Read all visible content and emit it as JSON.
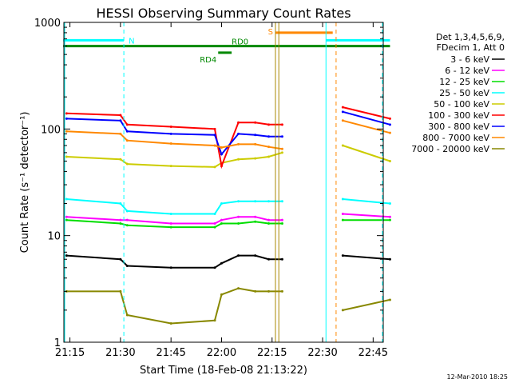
{
  "chart_data": {
    "type": "line",
    "title": "HESSI Observing Summary Count Rates",
    "xlabel": "Start Time (18-Feb-08 21:13:22)",
    "ylabel": "Count Rate (s⁻¹ detector⁻¹)",
    "ylog": true,
    "ylim": [
      1,
      1000
    ],
    "xlim_minutes": [
      21.22,
      22.8
    ],
    "x_ticks": [
      "21:15",
      "21:30",
      "21:45",
      "22:00",
      "22:15",
      "22:30",
      "22:45"
    ],
    "y_ticks": [
      "1",
      "10",
      "100",
      "1000"
    ],
    "grid": false,
    "legend_position": "right",
    "legend_header": [
      "Det 1,3,4,5,6,9,",
      "FDecim 1, Att 0"
    ],
    "series": [
      {
        "name": "3 - 6 keV",
        "color": "#000000",
        "x": [
          "21:14",
          "21:30",
          "21:32",
          "21:45",
          "21:58",
          "22:00",
          "22:05",
          "22:10",
          "22:14",
          "22:18",
          "22:36",
          "22:50"
        ],
        "values": [
          6.5,
          6.0,
          5.2,
          5.0,
          5.0,
          5.5,
          6.5,
          6.5,
          6.0,
          6.0,
          6.5,
          6.0
        ]
      },
      {
        "name": "6 - 12 keV",
        "color": "#ff00ff",
        "x": [
          "21:14",
          "21:30",
          "21:32",
          "21:45",
          "21:58",
          "22:00",
          "22:05",
          "22:10",
          "22:14",
          "22:18",
          "22:36",
          "22:50"
        ],
        "values": [
          15,
          14,
          14,
          13,
          13,
          14,
          15,
          15,
          14,
          14,
          16,
          15
        ]
      },
      {
        "name": "12 - 25 keV",
        "color": "#00dd00",
        "x": [
          "21:14",
          "21:30",
          "21:32",
          "21:45",
          "21:58",
          "22:00",
          "22:05",
          "22:10",
          "22:14",
          "22:18",
          "22:36",
          "22:50"
        ],
        "values": [
          14,
          13,
          12.5,
          12,
          12,
          13,
          13,
          13.5,
          13,
          13,
          14,
          14
        ]
      },
      {
        "name": "25 - 50 keV",
        "color": "#00ffff",
        "x": [
          "21:14",
          "21:30",
          "21:32",
          "21:45",
          "21:58",
          "22:00",
          "22:05",
          "22:10",
          "22:14",
          "22:18",
          "22:36",
          "22:50"
        ],
        "values": [
          22,
          20,
          17,
          16,
          16,
          20,
          21,
          21,
          21,
          21,
          22,
          20
        ]
      },
      {
        "name": "50 - 100 keV",
        "color": "#cccc00",
        "x": [
          "21:14",
          "21:30",
          "21:32",
          "21:45",
          "21:58",
          "22:00",
          "22:05",
          "22:10",
          "22:14",
          "22:18",
          "22:36",
          "22:50"
        ],
        "values": [
          55,
          52,
          47,
          45,
          44,
          48,
          52,
          53,
          55,
          60,
          70,
          50
        ]
      },
      {
        "name": "100 - 300 keV",
        "color": "#ff0000",
        "x": [
          "21:14",
          "21:30",
          "21:32",
          "21:45",
          "21:58",
          "22:00",
          "22:05",
          "22:10",
          "22:14",
          "22:18",
          "22:36",
          "22:50"
        ],
        "values": [
          140,
          135,
          110,
          105,
          100,
          45,
          115,
          115,
          110,
          110,
          160,
          125
        ]
      },
      {
        "name": "300 - 800 keV",
        "color": "#0000ff",
        "x": [
          "21:14",
          "21:30",
          "21:32",
          "21:45",
          "21:58",
          "22:00",
          "22:05",
          "22:10",
          "22:14",
          "22:18",
          "22:36",
          "22:50"
        ],
        "values": [
          125,
          120,
          95,
          90,
          88,
          58,
          90,
          88,
          85,
          85,
          145,
          110
        ]
      },
      {
        "name": "800 - 7000 keV",
        "color": "#ff8800",
        "x": [
          "21:14",
          "21:30",
          "21:32",
          "21:45",
          "21:58",
          "22:00",
          "22:05",
          "22:10",
          "22:14",
          "22:18",
          "22:36",
          "22:50"
        ],
        "values": [
          95,
          90,
          78,
          73,
          70,
          67,
          72,
          72,
          68,
          65,
          120,
          92
        ]
      },
      {
        "name": "7000 - 20000 keV",
        "color": "#888800",
        "x": [
          "21:14",
          "21:30",
          "21:32",
          "21:45",
          "21:58",
          "22:00",
          "22:05",
          "22:10",
          "22:14",
          "22:18",
          "22:36",
          "22:50"
        ],
        "values": [
          3.0,
          3.0,
          1.8,
          1.5,
          1.6,
          2.8,
          3.2,
          3.0,
          3.0,
          3.0,
          2.0,
          2.5
        ]
      }
    ],
    "flags": [
      {
        "label": "N",
        "color": "#00ffff",
        "value": 680,
        "segments": [
          [
            "21:13",
            "21:31"
          ],
          [
            "22:31",
            "22:50"
          ]
        ]
      },
      {
        "label": "S",
        "color": "#ff8800",
        "value": 800,
        "segments": [
          [
            "22:16",
            "22:33"
          ]
        ]
      },
      {
        "label": "RD0",
        "color": "#008800",
        "value": 600,
        "segments": [
          [
            "21:13",
            "22:50"
          ]
        ]
      },
      {
        "label": "RD4",
        "color": "#008800",
        "value": 520,
        "segments": [
          [
            "21:59",
            "22:03"
          ]
        ]
      }
    ],
    "vertical_markers": [
      {
        "color": "#00ffff",
        "style": "dashed",
        "x": [
          "21:31",
          "22:50"
        ]
      },
      {
        "color": "#00ffff",
        "style": "solid",
        "x": [
          "21:13",
          "22:31"
        ]
      },
      {
        "color": "#aa8800",
        "style": "solid",
        "x": [
          "22:16",
          "22:17"
        ]
      },
      {
        "color": "#ff8800",
        "style": "dashed",
        "x": [
          "22:34"
        ]
      }
    ]
  },
  "footer": {
    "timestamp": "12-Mar-2010 18:25"
  }
}
